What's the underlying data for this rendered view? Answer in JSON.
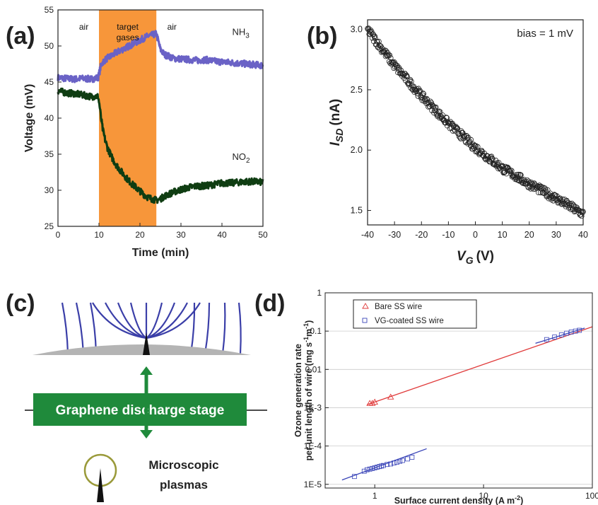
{
  "figure": {
    "panels": [
      "(a)",
      "(b)",
      "(c)",
      "(d)"
    ]
  },
  "chart_data": [
    {
      "panel": "(a)",
      "type": "line",
      "xlabel": "Time (min)",
      "ylabel": "Voltage (mV)",
      "xlim": [
        0,
        50
      ],
      "ylim": [
        25,
        55
      ],
      "xticks": [
        0,
        10,
        20,
        30,
        40,
        50
      ],
      "yticks": [
        25,
        30,
        35,
        40,
        45,
        50,
        55
      ],
      "shaded_region": {
        "x": [
          10,
          24
        ],
        "color": "#f7963a",
        "label": "target gases"
      },
      "annotations": [
        "air",
        "air"
      ],
      "series": [
        {
          "name": "NH3",
          "color": "#6a62c6",
          "x": [
            0,
            2,
            4,
            6,
            8,
            9.8,
            10.5,
            11,
            12,
            13,
            14,
            15,
            16,
            17,
            18,
            19,
            20,
            21,
            22,
            23,
            24,
            24.5,
            25,
            26,
            27,
            28,
            30,
            32,
            34,
            36,
            38,
            40,
            42,
            44,
            46,
            48,
            50
          ],
          "y": [
            45.6,
            45.5,
            45.4,
            45.5,
            45.4,
            45.6,
            47.3,
            47.8,
            48.3,
            48.6,
            49.0,
            49.3,
            49.6,
            49.9,
            50.2,
            50.5,
            50.8,
            51.1,
            51.4,
            51.5,
            51.7,
            50.6,
            49.5,
            48.8,
            48.6,
            48.3,
            48.2,
            48.1,
            48.0,
            48.1,
            47.9,
            47.8,
            47.7,
            47.6,
            47.5,
            47.4,
            47.3
          ]
        },
        {
          "name": "NO2",
          "color": "#0f3d12",
          "x": [
            0,
            2,
            4,
            6,
            8,
            9.8,
            10.2,
            10.5,
            11,
            11.5,
            12,
            13,
            14,
            15,
            16,
            17,
            18,
            19,
            20,
            21,
            22,
            23,
            24,
            25,
            26,
            28,
            30,
            32,
            34,
            36,
            38,
            40,
            42,
            44,
            46,
            48,
            50
          ],
          "y": [
            43.8,
            43.5,
            43.4,
            43.2,
            43.0,
            43.0,
            41.5,
            40.0,
            38.2,
            37.0,
            36.0,
            34.7,
            33.7,
            32.9,
            32.2,
            31.5,
            30.9,
            30.4,
            29.9,
            29.4,
            29.0,
            28.8,
            28.6,
            28.8,
            29.2,
            29.7,
            30.1,
            30.4,
            30.6,
            30.6,
            30.8,
            31.0,
            31.0,
            31.1,
            31.2,
            31.2,
            31.1
          ]
        }
      ],
      "series_labels": [
        "NH",
        "3",
        "NO",
        "2"
      ]
    },
    {
      "panel": "(b)",
      "type": "scatter",
      "xlabel": "V",
      "xlabel_sub": "G",
      "xlabel_unit": "(V)",
      "ylabel": "I",
      "ylabel_sub": "SD",
      "ylabel_unit": "(nA)",
      "xlim": [
        -40,
        40
      ],
      "ylim": [
        1.38,
        3.08
      ],
      "xticks": [
        -40,
        -30,
        -20,
        -10,
        0,
        10,
        20,
        30,
        40
      ],
      "yticks": [
        1.5,
        2.0,
        2.5,
        3.0
      ],
      "annotation": "bias = 1 mV",
      "trend": {
        "x": [
          -40,
          -30,
          -20,
          -10,
          0,
          10,
          20,
          30,
          40
        ],
        "y": [
          3.0,
          2.7,
          2.45,
          2.22,
          2.02,
          1.85,
          1.72,
          1.6,
          1.47
        ]
      },
      "marker": "open-circle"
    },
    {
      "panel": "(d)",
      "type": "scatter",
      "xscale": "log",
      "yscale": "log",
      "xlabel": "Surface current density (A m",
      "xlabel_sup": "-2",
      "xlabel_end": ")",
      "ylabel_line1": "Ozone generation rate",
      "ylabel_line2": "per unit length of wire (mg s",
      "ylabel_sup1": "-1",
      "ylabel_mid": "m",
      "ylabel_sup2": "-1",
      "ylabel_end": ")",
      "xlim": [
        0.35,
        100
      ],
      "ylim": [
        8e-06,
        1
      ],
      "xticks": [
        "1",
        "10",
        "100"
      ],
      "yticks": [
        "1E-5",
        "1E-4",
        "1E-3",
        "0.01",
        "0.1",
        "1"
      ],
      "series": [
        {
          "name": "Bare SS wire",
          "color": "#e03a3a",
          "marker": "triangle",
          "points_x": [
            0.9,
            0.95,
            1.0,
            1.4
          ],
          "points_y": [
            0.0013,
            0.0013,
            0.0014,
            0.0019
          ],
          "fit_x": [
            0.85,
            100
          ],
          "fit_y": [
            0.0012,
            0.13
          ]
        },
        {
          "name": "VG-coated SS wire",
          "color": "#3a45b8",
          "marker": "square",
          "points_x": [
            0.65,
            0.8,
            0.85,
            0.9,
            0.95,
            1.0,
            1.05,
            1.1,
            1.15,
            1.2,
            1.3,
            1.4,
            1.5,
            1.6,
            1.7,
            1.8,
            2.0,
            2.2,
            38,
            45,
            52,
            58,
            64,
            70,
            76
          ],
          "points_y": [
            1.6e-05,
            2.2e-05,
            2.4e-05,
            2.5e-05,
            2.6e-05,
            2.7e-05,
            2.8e-05,
            2.9e-05,
            3e-05,
            3.1e-05,
            3.3e-05,
            3.4e-05,
            3.6e-05,
            3.8e-05,
            4e-05,
            4.2e-05,
            4.6e-05,
            5.1e-05,
            0.06,
            0.07,
            0.08,
            0.088,
            0.095,
            0.1,
            0.105
          ],
          "fit_segments": [
            {
              "x": [
                0.5,
                3.0
              ],
              "y": [
                1.3e-05,
                8.5e-05
              ]
            },
            {
              "x": [
                30,
                85
              ],
              "y": [
                0.048,
                0.12
              ]
            }
          ]
        }
      ]
    }
  ],
  "diagram": {
    "stage_label": "Graphene discharge stage",
    "plasma_label_line1": "Microscopic",
    "plasma_label_line2": "plasmas",
    "colors": {
      "field_lines": "#3b3fa8",
      "stage": "#1f8a3b",
      "base": "#b4b4b4",
      "ring": "#9a9a3a"
    }
  }
}
